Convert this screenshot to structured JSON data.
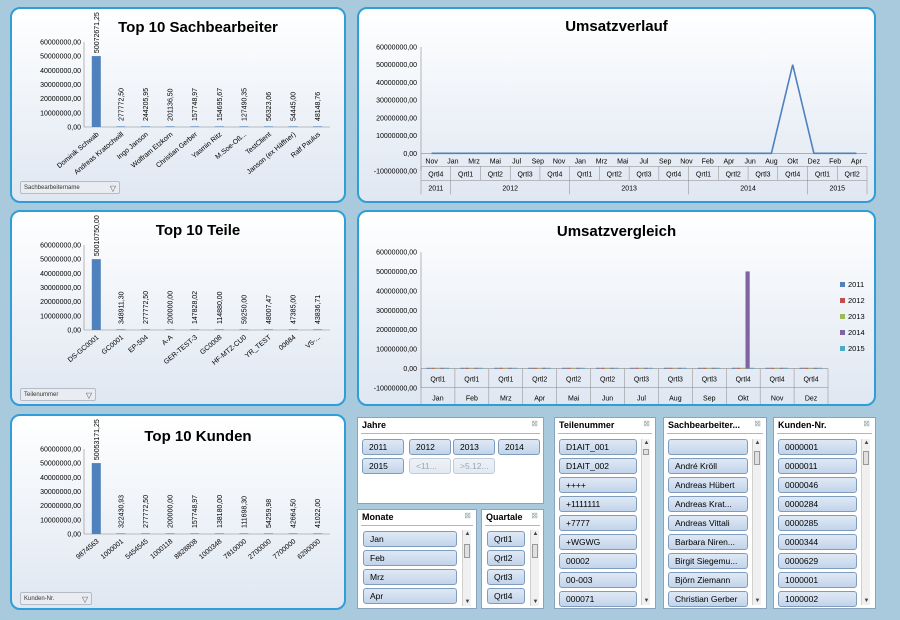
{
  "colors": {
    "border": "#2f9ed8",
    "bar": "#4f81bd",
    "line": "#4f81bd"
  },
  "filters": {
    "sach": "Sachbearbeitername",
    "teil": "Teilenummer",
    "kunde": "Kunden-Nr."
  },
  "chart_data": [
    {
      "type": "bar",
      "title": "Top 10 Sachbearbeiter",
      "categories": [
        "Dominik Schwab",
        "Andreas Kratochwill",
        "Ingo Janson",
        "Wolfram Etzkorn",
        "Christian Gerber",
        "Yasmin Ritz",
        "M.Soe-Oß...",
        "TestClient",
        "Janson (ex Häffner)",
        "Ralf Paulus"
      ],
      "values": [
        50072671.25,
        277772.5,
        244205.95,
        201136.5,
        157748.97,
        154695.67,
        127490.35,
        56323.06,
        54445.0,
        48148.76
      ],
      "labels": [
        "50072671,25",
        "277772,50",
        "244205,95",
        "201136,50",
        "157748,97",
        "154695,67",
        "127490,35",
        "56323,06",
        "54445,00",
        "48148,76"
      ],
      "yticks": [
        "0,00",
        "10000000,00",
        "20000000,00",
        "30000000,00",
        "40000000,00",
        "50000000,00",
        "60000000,00"
      ],
      "ylim": [
        0,
        60000000
      ]
    },
    {
      "type": "bar",
      "title": "Top 10 Teile",
      "categories": [
        "DS-GC0001",
        "GC0001",
        "EP-504",
        "A-A",
        "GER-TEST-3",
        "GC0008",
        "HF-MTZ-CU0",
        "YR_TEST",
        "00684",
        "V5-..."
      ],
      "values": [
        50010750.0,
        348911.3,
        277772.5,
        200000.0,
        147828.02,
        114880.0,
        59250.0,
        48007.47,
        47385.0,
        43836.71
      ],
      "labels": [
        "50010750,00",
        "348911,30",
        "277772,50",
        "200000,00",
        "147828,02",
        "114880,00",
        "59250,00",
        "48007,47",
        "47385,00",
        "43836,71"
      ],
      "yticks": [
        "0,00",
        "10000000,00",
        "20000000,00",
        "30000000,00",
        "40000000,00",
        "50000000,00",
        "60000000,00"
      ],
      "ylim": [
        0,
        60000000
      ]
    },
    {
      "type": "bar",
      "title": "Top 10 Kunden",
      "categories": [
        "9874563",
        "1000001",
        "5454545",
        "1000118",
        "8828808",
        "1000348",
        "7810000",
        "2700000",
        "7700000",
        "6290000"
      ],
      "values": [
        50053171.25,
        322430.93,
        277772.5,
        200000.0,
        157748.97,
        138180.0,
        111698.3,
        54259.98,
        42664.5,
        41022.0
      ],
      "labels": [
        "50053171,25",
        "322430,93",
        "277772,50",
        "200000,00",
        "157748,97",
        "138180,00",
        "111698,30",
        "54259,98",
        "42664,50",
        "41022,00"
      ],
      "yticks": [
        "0,00",
        "10000000,00",
        "20000000,00",
        "30000000,00",
        "40000000,00",
        "50000000,00",
        "60000000,00"
      ],
      "ylim": [
        0,
        60000000
      ]
    },
    {
      "type": "line",
      "title": "Umsatzverlauf",
      "yticks": [
        "-10000000,00",
        "0,00",
        "10000000,00",
        "20000000,00",
        "30000000,00",
        "40000000,00",
        "50000000,00",
        "60000000,00"
      ],
      "ylim": [
        -10000000,
        60000000
      ],
      "months": [
        "Nov",
        "Jan",
        "Mrz",
        "Mai",
        "Jul",
        "Sep",
        "Nov",
        "Jan",
        "Mrz",
        "Mai",
        "Jul",
        "Sep",
        "Nov",
        "Feb",
        "Apr",
        "Jun",
        "Aug",
        "Okt",
        "Dez",
        "Feb",
        "Apr"
      ],
      "quarters": [
        {
          "label": "Qrtl4",
          "span": 1
        },
        {
          "label": "Qrtl1",
          "span": 1
        },
        {
          "label": "Qrtl2",
          "span": 1
        },
        {
          "label": "Qrtl3",
          "span": 1
        },
        {
          "label": "Qrtl4",
          "span": 1
        },
        {
          "label": "Qrtl1",
          "span": 1
        },
        {
          "label": "Qrtl2",
          "span": 1
        },
        {
          "label": "Qrtl3",
          "span": 1
        },
        {
          "label": "Qrtl4",
          "span": 1
        },
        {
          "label": "Qrtl1",
          "span": 1
        },
        {
          "label": "Qrtl2",
          "span": 1
        },
        {
          "label": "Qrtl3",
          "span": 1
        },
        {
          "label": "Qrtl4",
          "span": 1
        },
        {
          "label": "Qrtl1",
          "span": 1
        },
        {
          "label": "Qrtl2",
          "span": 1
        }
      ],
      "years": [
        {
          "label": "2011",
          "span": 1
        },
        {
          "label": "2012",
          "span": 4
        },
        {
          "label": "2013",
          "span": 4
        },
        {
          "label": "2014",
          "span": 4
        },
        {
          "label": "2015",
          "span": 2
        }
      ],
      "series": [
        {
          "values": [
            0,
            0,
            0,
            0,
            0,
            0,
            0,
            0,
            0,
            0,
            0,
            0,
            0,
            0,
            0,
            0,
            0,
            50000000,
            0,
            0,
            0
          ]
        }
      ]
    },
    {
      "type": "bar",
      "title": "Umsatzvergleich",
      "yticks": [
        "-10000000,00",
        "0,00",
        "10000000,00",
        "20000000,00",
        "30000000,00",
        "40000000,00",
        "50000000,00",
        "60000000,00"
      ],
      "ylim": [
        -10000000,
        60000000
      ],
      "categories": [
        {
          "quarter": "Qrtl1",
          "month": "Jan"
        },
        {
          "quarter": "Qrtl1",
          "month": "Feb"
        },
        {
          "quarter": "Qrtl1",
          "month": "Mrz"
        },
        {
          "quarter": "Qrtl2",
          "month": "Apr"
        },
        {
          "quarter": "Qrtl2",
          "month": "Mai"
        },
        {
          "quarter": "Qrtl2",
          "month": "Jun"
        },
        {
          "quarter": "Qrtl3",
          "month": "Jul"
        },
        {
          "quarter": "Qrtl3",
          "month": "Aug"
        },
        {
          "quarter": "Qrtl3",
          "month": "Sep"
        },
        {
          "quarter": "Qrtl4",
          "month": "Okt"
        },
        {
          "quarter": "Qrtl4",
          "month": "Nov"
        },
        {
          "quarter": "Qrtl4",
          "month": "Dez"
        }
      ],
      "legend_position": "right",
      "series": [
        {
          "name": "2011",
          "color": "#4f81bd",
          "values": [
            0,
            0,
            0,
            0,
            0,
            0,
            0,
            0,
            0,
            0,
            0,
            0
          ]
        },
        {
          "name": "2012",
          "color": "#c0504d",
          "values": [
            0,
            0,
            0,
            0,
            0,
            0,
            0,
            0,
            0,
            0,
            0,
            0
          ]
        },
        {
          "name": "2013",
          "color": "#9bbb59",
          "values": [
            0,
            0,
            0,
            0,
            0,
            0,
            0,
            0,
            0,
            0,
            0,
            0
          ]
        },
        {
          "name": "2014",
          "color": "#8064a2",
          "values": [
            0,
            0,
            0,
            0,
            0,
            0,
            0,
            0,
            0,
            50000000,
            0,
            0
          ]
        },
        {
          "name": "2015",
          "color": "#4bacc6",
          "values": [
            0,
            0,
            0,
            0,
            0,
            0,
            0,
            0,
            0,
            0,
            0,
            0
          ]
        }
      ]
    }
  ],
  "slicers": {
    "jahre": {
      "title": "Jahre",
      "items": [
        {
          "label": "2011"
        },
        {
          "label": "2012"
        },
        {
          "label": "2013"
        },
        {
          "label": "2014"
        },
        {
          "label": "2015"
        },
        {
          "label": "<11...",
          "dim": true
        },
        {
          "label": ">5.12...",
          "dim": true
        }
      ]
    },
    "monate": {
      "title": "Monate",
      "items": [
        "Jan",
        "Feb",
        "Mrz",
        "Apr"
      ]
    },
    "quartale": {
      "title": "Quartale",
      "items": [
        "Qrtl1",
        "Qrtl2",
        "Qrtl3",
        "Qrtl4"
      ]
    },
    "teilenummer": {
      "title": "Teilenummer",
      "items": [
        "D1AIT_001",
        "D1AIT_002",
        "++++",
        "+1111111",
        "+7777",
        "+WGWG",
        "00002",
        "00-003",
        "000071"
      ]
    },
    "sachbearbeiter": {
      "title": "Sachbearbeiter...",
      "items": [
        "",
        "André Kröll",
        "Andreas Hübert",
        "Andreas Krat...",
        "Andreas Vittali",
        "Barbara Niren...",
        "Birgit Siegemu...",
        "Björn Ziemann",
        "Christian Gerber"
      ]
    },
    "kunden": {
      "title": "Kunden-Nr.",
      "items": [
        "0000001",
        "0000011",
        "0000046",
        "0000284",
        "0000285",
        "0000344",
        "0000629",
        "1000001",
        "1000002"
      ]
    }
  }
}
